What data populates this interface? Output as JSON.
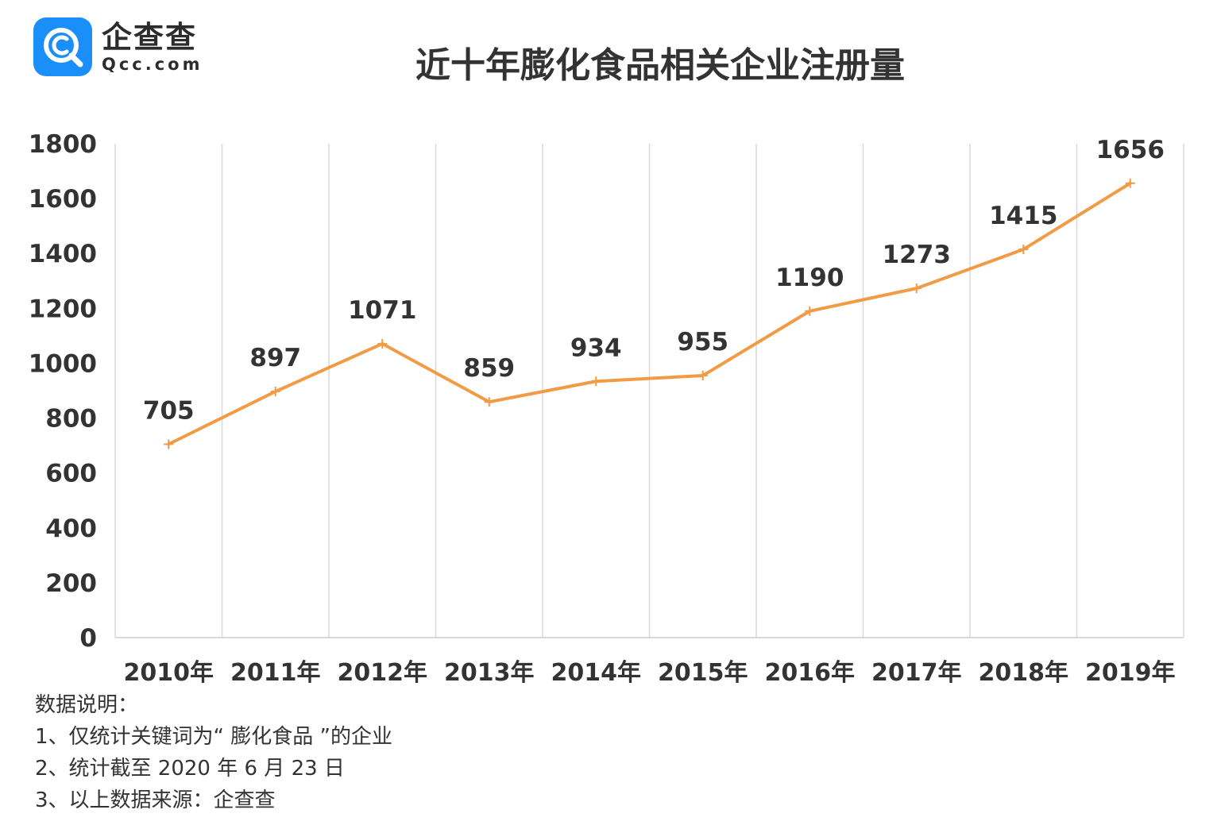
{
  "logo": {
    "name": "企查查",
    "domain": "Qcc.com"
  },
  "chart_data": {
    "type": "line",
    "title": "近十年膨化食品相关企业注册量",
    "categories": [
      "2010年",
      "2011年",
      "2012年",
      "2013年",
      "2014年",
      "2015年",
      "2016年",
      "2017年",
      "2018年",
      "2019年"
    ],
    "series": [
      {
        "values": [
          705,
          897,
          1071,
          859,
          934,
          955,
          1190,
          1273,
          1415,
          1656
        ]
      }
    ],
    "y_ticks": [
      "0",
      "200",
      "400",
      "600",
      "800",
      "1000",
      "1200",
      "1400",
      "1600",
      "1800"
    ],
    "ylim": [
      0,
      1800
    ],
    "grid": "vertical",
    "line_color": "#f29b45",
    "data_labels": true
  },
  "notes": {
    "heading": "数据说明：",
    "items": [
      "1、仅统计关键词为“ 膨化食品 ”的企业",
      "2、统计截至 2020 年 6 月 23 日",
      "3、以上数据来源：企查查"
    ]
  }
}
